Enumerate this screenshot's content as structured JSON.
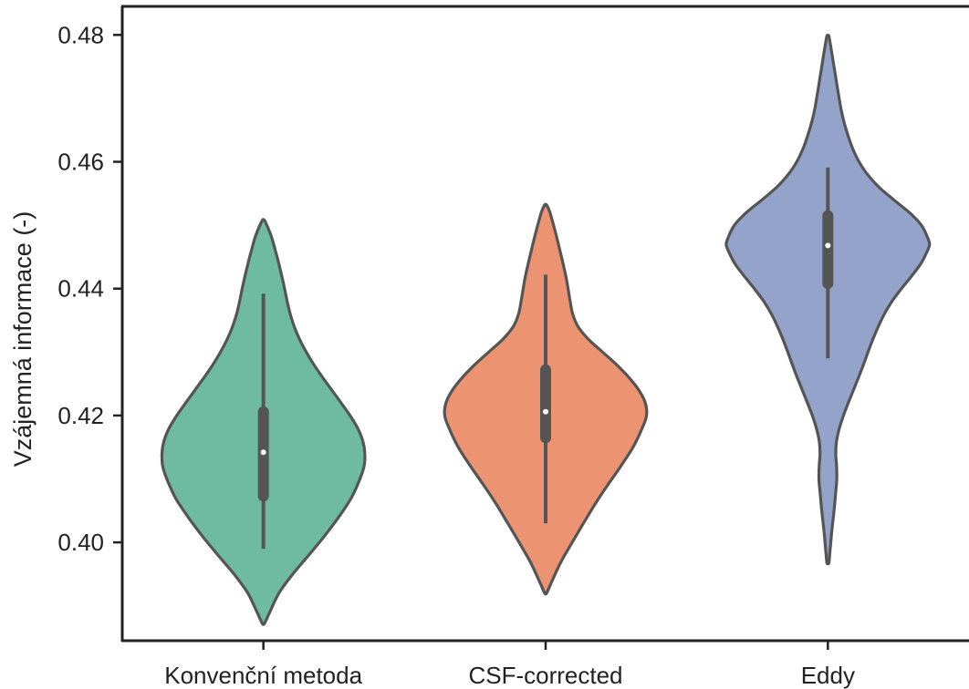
{
  "chart_data": {
    "type": "violin",
    "title": "",
    "xlabel": "",
    "ylabel": "Vzájemná informace (-)",
    "ylim": [
      0.3845,
      0.4845
    ],
    "yticks": [
      "0.40",
      "0.42",
      "0.44",
      "0.46",
      "0.48"
    ],
    "categories": [
      "Konvenční metoda",
      "CSF-corrected",
      "Eddy"
    ],
    "grid": false,
    "legend": "none",
    "colors": {
      "fill": [
        "#6fbba2",
        "#ec9472",
        "#93a3c9"
      ],
      "outline": "#555555",
      "axis": "#222222",
      "median": "#ffffff"
    },
    "violins": [
      {
        "name": "Konvenční metoda",
        "min": 0.399,
        "q1": 0.4073,
        "median": 0.4142,
        "q3": 0.4206,
        "max": 0.4392,
        "density": [
          [
            0.3872,
            0.01
          ],
          [
            0.389,
            0.05
          ],
          [
            0.392,
            0.14
          ],
          [
            0.395,
            0.28
          ],
          [
            0.398,
            0.45
          ],
          [
            0.401,
            0.6
          ],
          [
            0.404,
            0.74
          ],
          [
            0.407,
            0.87
          ],
          [
            0.41,
            0.96
          ],
          [
            0.412,
            0.99
          ],
          [
            0.414,
            1.0
          ],
          [
            0.416,
            0.98
          ],
          [
            0.418,
            0.93
          ],
          [
            0.42,
            0.85
          ],
          [
            0.422,
            0.76
          ],
          [
            0.424,
            0.67
          ],
          [
            0.426,
            0.58
          ],
          [
            0.428,
            0.49
          ],
          [
            0.43,
            0.42
          ],
          [
            0.432,
            0.35
          ],
          [
            0.434,
            0.3
          ],
          [
            0.436,
            0.26
          ],
          [
            0.438,
            0.23
          ],
          [
            0.44,
            0.21
          ],
          [
            0.442,
            0.18
          ],
          [
            0.444,
            0.15
          ],
          [
            0.446,
            0.12
          ],
          [
            0.448,
            0.08
          ],
          [
            0.4495,
            0.05
          ],
          [
            0.4508,
            0.01
          ]
        ]
      },
      {
        "name": "CSF-corrected",
        "min": 0.403,
        "q1": 0.4165,
        "median": 0.4206,
        "q3": 0.4272,
        "max": 0.4422,
        "density": [
          [
            0.392,
            0.01
          ],
          [
            0.394,
            0.05
          ],
          [
            0.397,
            0.15
          ],
          [
            0.4,
            0.26
          ],
          [
            0.403,
            0.37
          ],
          [
            0.406,
            0.48
          ],
          [
            0.409,
            0.6
          ],
          [
            0.412,
            0.74
          ],
          [
            0.415,
            0.86
          ],
          [
            0.418,
            0.96
          ],
          [
            0.42,
            1.0
          ],
          [
            0.422,
            0.99
          ],
          [
            0.424,
            0.92
          ],
          [
            0.426,
            0.82
          ],
          [
            0.428,
            0.7
          ],
          [
            0.43,
            0.56
          ],
          [
            0.432,
            0.41
          ],
          [
            0.434,
            0.3
          ],
          [
            0.436,
            0.26
          ],
          [
            0.438,
            0.24
          ],
          [
            0.44,
            0.22
          ],
          [
            0.442,
            0.2
          ],
          [
            0.444,
            0.17
          ],
          [
            0.446,
            0.14
          ],
          [
            0.448,
            0.11
          ],
          [
            0.45,
            0.08
          ],
          [
            0.452,
            0.04
          ],
          [
            0.4532,
            0.01
          ]
        ]
      },
      {
        "name": "Eddy",
        "min": 0.429,
        "q1": 0.4408,
        "median": 0.4468,
        "q3": 0.4515,
        "max": 0.4591,
        "density": [
          [
            0.3968,
            0.01
          ],
          [
            0.399,
            0.02
          ],
          [
            0.402,
            0.04
          ],
          [
            0.405,
            0.06
          ],
          [
            0.408,
            0.08
          ],
          [
            0.41,
            0.09
          ],
          [
            0.412,
            0.09
          ],
          [
            0.414,
            0.07
          ],
          [
            0.416,
            0.08
          ],
          [
            0.418,
            0.11
          ],
          [
            0.42,
            0.15
          ],
          [
            0.422,
            0.2
          ],
          [
            0.424,
            0.25
          ],
          [
            0.426,
            0.3
          ],
          [
            0.428,
            0.35
          ],
          [
            0.43,
            0.39
          ],
          [
            0.432,
            0.44
          ],
          [
            0.434,
            0.49
          ],
          [
            0.436,
            0.55
          ],
          [
            0.438,
            0.62
          ],
          [
            0.44,
            0.72
          ],
          [
            0.442,
            0.82
          ],
          [
            0.444,
            0.92
          ],
          [
            0.446,
            0.99
          ],
          [
            0.447,
            1.0
          ],
          [
            0.448,
            0.99
          ],
          [
            0.45,
            0.93
          ],
          [
            0.452,
            0.81
          ],
          [
            0.454,
            0.64
          ],
          [
            0.456,
            0.49
          ],
          [
            0.458,
            0.38
          ],
          [
            0.46,
            0.3
          ],
          [
            0.462,
            0.24
          ],
          [
            0.464,
            0.2
          ],
          [
            0.466,
            0.16
          ],
          [
            0.468,
            0.13
          ],
          [
            0.47,
            0.11
          ],
          [
            0.472,
            0.09
          ],
          [
            0.474,
            0.07
          ],
          [
            0.476,
            0.05
          ],
          [
            0.478,
            0.03
          ],
          [
            0.4798,
            0.01
          ]
        ]
      }
    ]
  }
}
